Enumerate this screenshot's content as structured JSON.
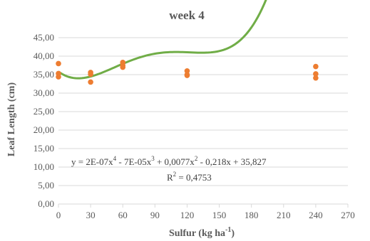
{
  "chart_data": {
    "type": "scatter",
    "title": "week 4",
    "xlabel": "Sulfur (kg ha",
    "xlabel_sup": "-1",
    "xlabel_end": ")",
    "ylabel": "Leaf Length (cm)",
    "xlim": [
      0,
      270
    ],
    "ylim": [
      0,
      45
    ],
    "x_ticks": [
      "0",
      "30",
      "60",
      "90",
      "120",
      "150",
      "180",
      "210",
      "240",
      "270"
    ],
    "y_ticks": [
      "0,00",
      "5,00",
      "10,00",
      "15,00",
      "20,00",
      "25,00",
      "30,00",
      "35,00",
      "40,00",
      "45,00"
    ],
    "grid": "horizontal",
    "series": [
      {
        "points": [
          {
            "x": 0,
            "y": 38.0
          },
          {
            "x": 0,
            "y": 35.3
          },
          {
            "x": 0,
            "y": 34.4
          },
          {
            "x": 30,
            "y": 35.6
          },
          {
            "x": 30,
            "y": 35.1
          },
          {
            "x": 30,
            "y": 33.0
          },
          {
            "x": 60,
            "y": 38.3
          },
          {
            "x": 60,
            "y": 37.5
          },
          {
            "x": 60,
            "y": 37.0
          },
          {
            "x": 120,
            "y": 36.0
          },
          {
            "x": 120,
            "y": 35.0
          },
          {
            "x": 120,
            "y": 34.8
          },
          {
            "x": 240,
            "y": 37.2
          },
          {
            "x": 240,
            "y": 35.2
          },
          {
            "x": 240,
            "y": 34.1
          }
        ]
      }
    ],
    "trendline": {
      "coefficients": [
        35.827,
        -0.218,
        0.0077,
        -7e-05,
        2e-07
      ],
      "xrange": [
        0,
        240
      ],
      "equation_parts": [
        "y = 2E-07x",
        "4",
        " - 7E-05x",
        "3",
        " + 0,0077x",
        "2",
        " - 0,218x + 35,827"
      ],
      "r2_parts": [
        "R",
        "2",
        " = 0,4753"
      ]
    },
    "colors": {
      "points": "#ed7d31",
      "trendline": "#70ad47",
      "grid": "#d9d9d9",
      "text": "#595959"
    }
  }
}
